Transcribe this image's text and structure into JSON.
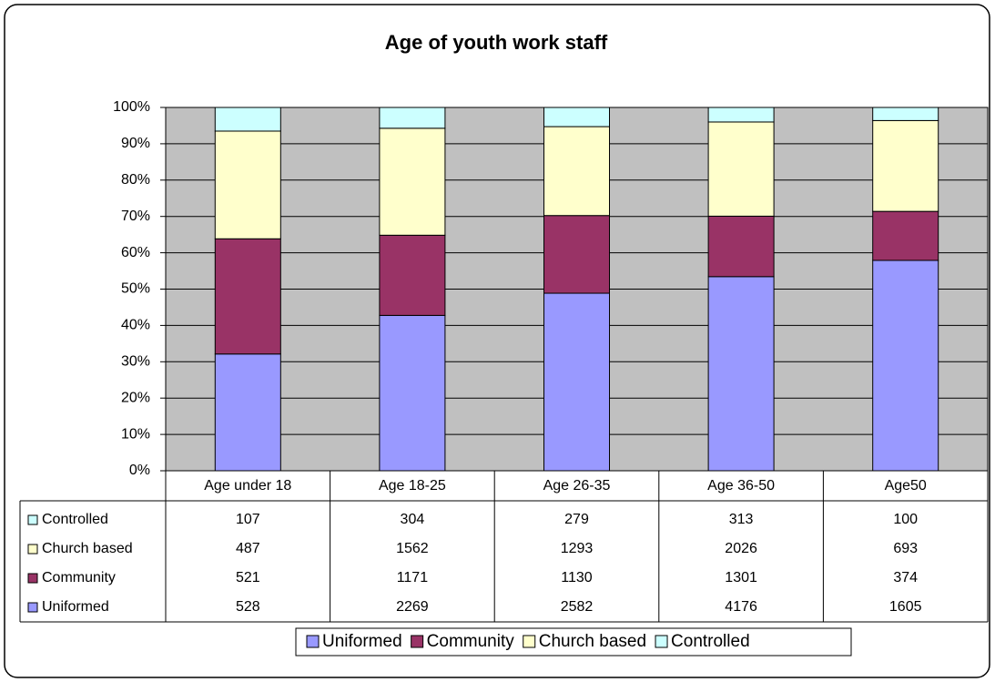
{
  "chart_data": {
    "type": "bar",
    "stacking": "percent",
    "title": "Age of youth work staff",
    "categories": [
      "Age under 18",
      "Age 18-25",
      "Age 26-35",
      "Age 36-50",
      "Age50"
    ],
    "series": [
      {
        "name": "Uniformed",
        "color": "#9999ff",
        "values": [
          528,
          2269,
          2582,
          4176,
          1605
        ]
      },
      {
        "name": "Community",
        "color": "#993366",
        "values": [
          521,
          1171,
          1130,
          1301,
          374
        ]
      },
      {
        "name": "Church based",
        "color": "#ffffcc",
        "values": [
          487,
          1562,
          1293,
          2026,
          693
        ]
      },
      {
        "name": "Controlled",
        "color": "#ccffff",
        "values": [
          107,
          304,
          279,
          313,
          100
        ]
      }
    ],
    "ylim": [
      0,
      100
    ],
    "yticks": [
      {
        "value": 0,
        "label": "0%"
      },
      {
        "value": 10,
        "label": "10%"
      },
      {
        "value": 20,
        "label": "20%"
      },
      {
        "value": 30,
        "label": "30%"
      },
      {
        "value": 40,
        "label": "40%"
      },
      {
        "value": 50,
        "label": "50%"
      },
      {
        "value": 60,
        "label": "60%"
      },
      {
        "value": 70,
        "label": "70%"
      },
      {
        "value": 80,
        "label": "80%"
      },
      {
        "value": 90,
        "label": "90%"
      },
      {
        "value": 100,
        "label": "100%"
      }
    ],
    "grid": true,
    "legend": "bottom",
    "plot_background": "#c0c0c0"
  }
}
